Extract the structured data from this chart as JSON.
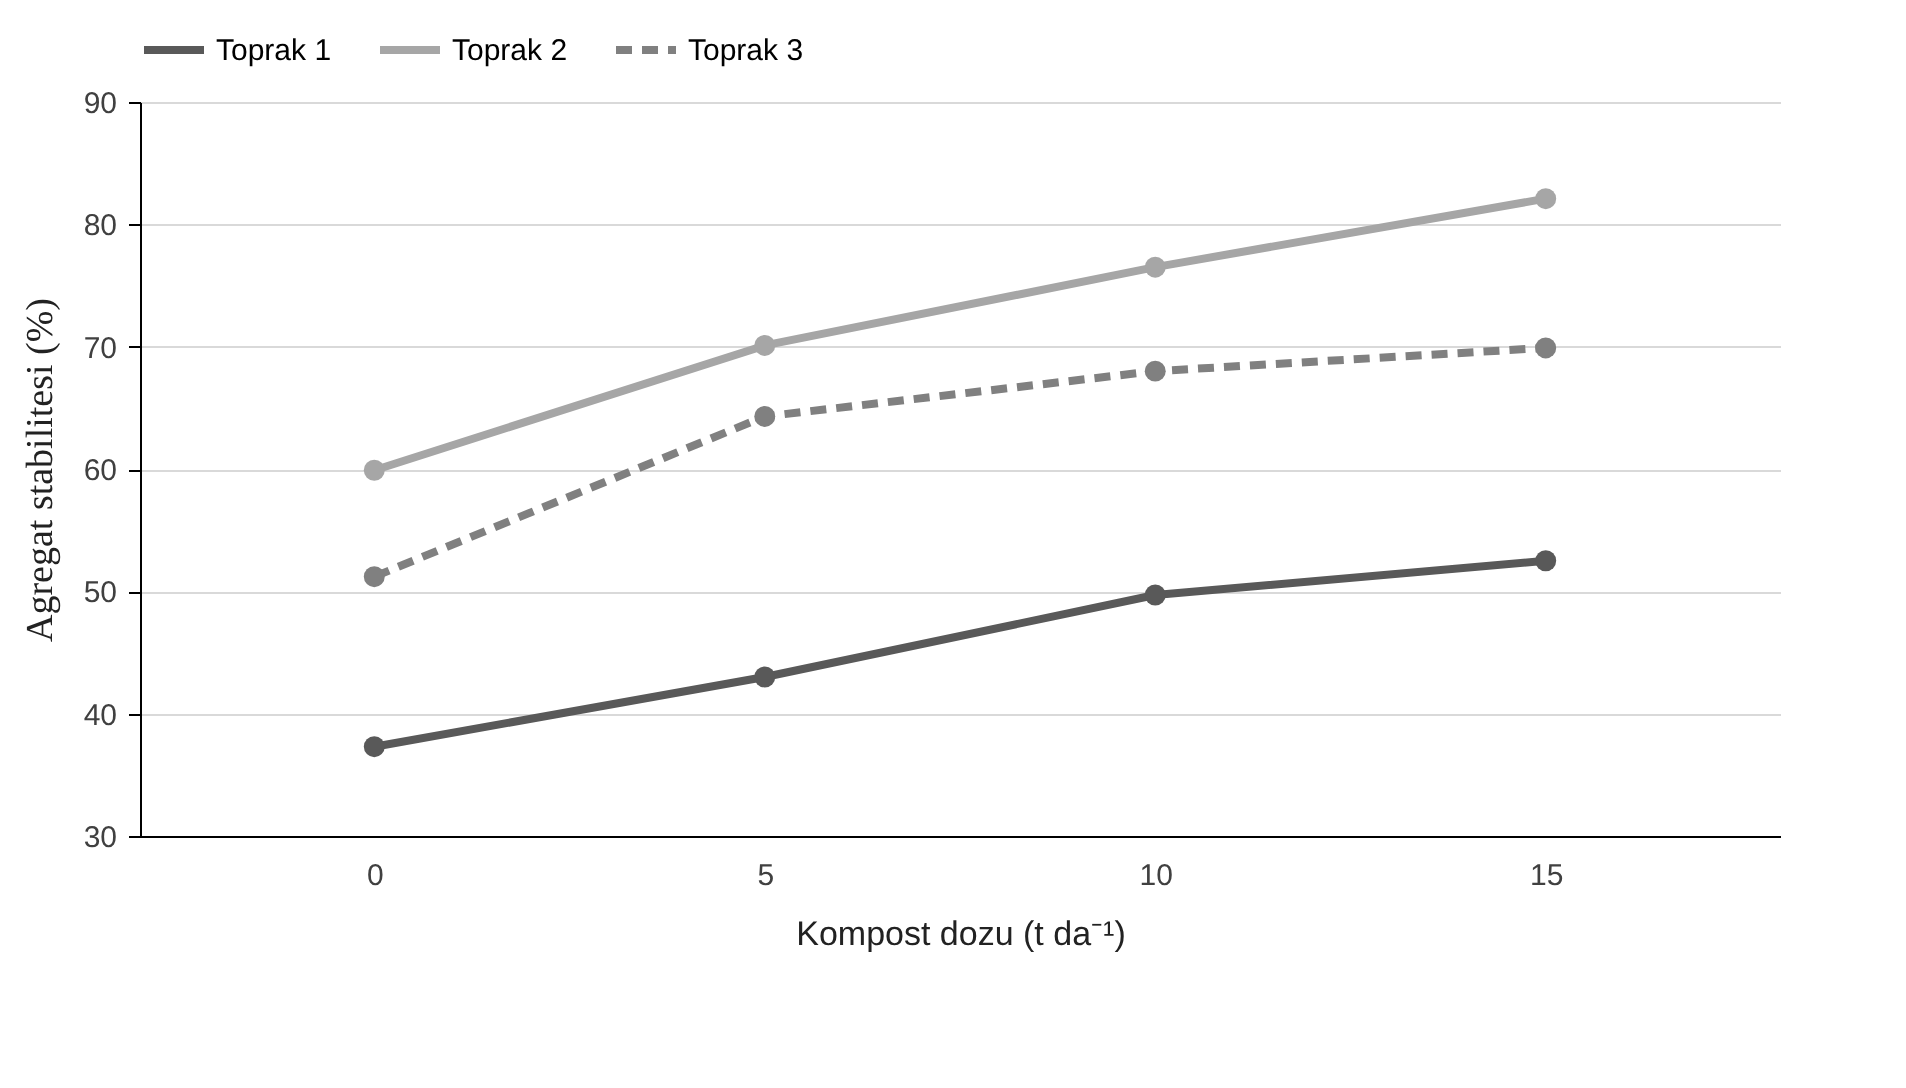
{
  "chart_data": {
    "type": "line",
    "xlabel": "Kompost dozu (t da⁻¹)",
    "ylabel": "Agregat stabilitesi (%)",
    "categories": [
      "0",
      "5",
      "10",
      "15"
    ],
    "series": [
      {
        "name": "Toprak 1",
        "color": "#595959",
        "values": [
          37.3,
          43.0,
          49.7,
          52.5
        ]
      },
      {
        "name": "Toprak 2",
        "color": "#a6a6a6",
        "values": [
          59.9,
          70.1,
          76.5,
          82.1
        ]
      },
      {
        "name": "Toprak 3",
        "color": "#808080",
        "line_style": "dashed",
        "values": [
          51.2,
          64.3,
          68.0,
          69.9
        ]
      }
    ],
    "ylim": [
      30,
      90
    ],
    "yticks": [
      30,
      40,
      50,
      60,
      70,
      80,
      90
    ],
    "grid": "y",
    "legend": "top",
    "marker": "circle",
    "line_style": "solid"
  }
}
